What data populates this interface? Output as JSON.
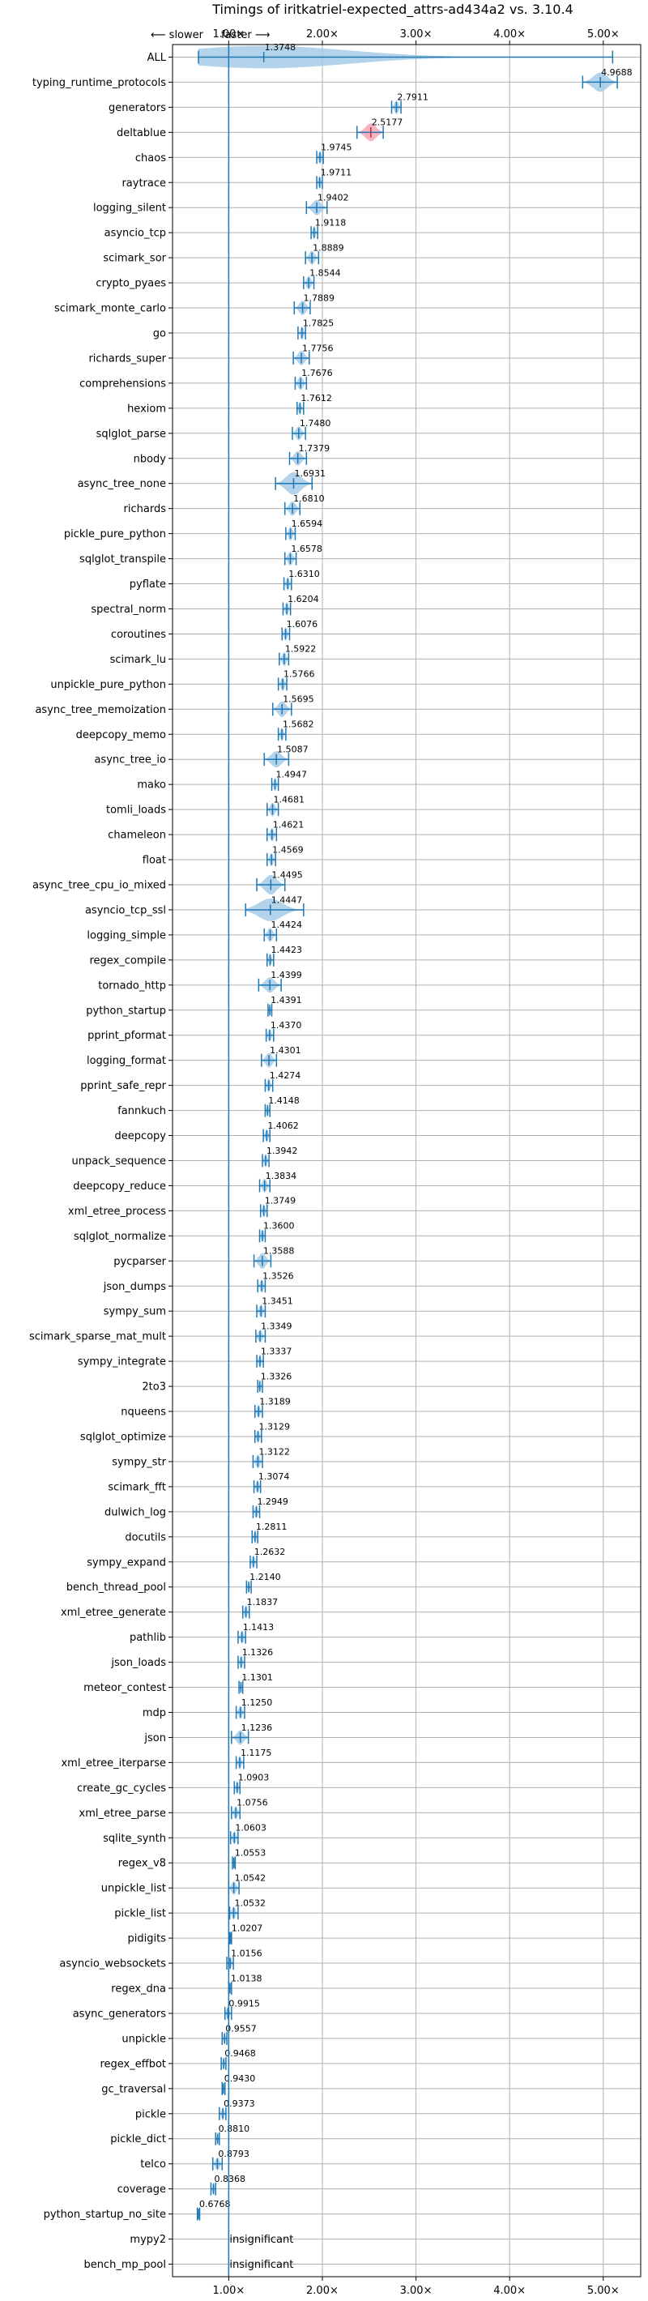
{
  "chart_data": {
    "type": "violin",
    "title": "Timings of iritkatriel-expected_attrs-ad434a2 vs. 3.10.4",
    "direction_labels": {
      "slower": "⟵ slower",
      "faster": "faster ⟶"
    },
    "xlim": [
      0.4,
      5.4
    ],
    "xticks": [
      1,
      2,
      3,
      4,
      5
    ],
    "xtick_labels": [
      "1.00×",
      "2.00×",
      "3.00×",
      "4.00×",
      "5.00×"
    ],
    "reference_line": 1.0,
    "grid": true,
    "colors": {
      "faster": "#1f77b4",
      "faster_fill": "#a6cbe8",
      "slower_fill": "#f4a7b9"
    },
    "insignificant_label": "insignificant",
    "benchmarks": [
      {
        "name": "ALL",
        "value": 1.3748,
        "label": "1.3748",
        "min": 0.6768,
        "max": 5.1,
        "spread": 0.25
      },
      {
        "name": "typing_runtime_protocols",
        "value": 4.9688,
        "label": "4.9688",
        "min": 4.78,
        "max": 5.15,
        "spread": 0.12
      },
      {
        "name": "generators",
        "value": 2.7911,
        "label": "2.7911",
        "min": 2.74,
        "max": 2.84,
        "spread": 0.04
      },
      {
        "name": "deltablue",
        "value": 2.5177,
        "label": "2.5177",
        "min": 2.37,
        "max": 2.65,
        "spread": 0.1,
        "slower": true
      },
      {
        "name": "chaos",
        "value": 1.9745,
        "label": "1.9745",
        "min": 1.94,
        "max": 2.01,
        "spread": 0.03
      },
      {
        "name": "raytrace",
        "value": 1.9711,
        "label": "1.9711",
        "min": 1.94,
        "max": 2.0,
        "spread": 0.03
      },
      {
        "name": "logging_silent",
        "value": 1.9402,
        "label": "1.9402",
        "min": 1.83,
        "max": 2.05,
        "spread": 0.06
      },
      {
        "name": "asyncio_tcp",
        "value": 1.9118,
        "label": "1.9118",
        "min": 1.88,
        "max": 1.95,
        "spread": 0.03
      },
      {
        "name": "scimark_sor",
        "value": 1.8889,
        "label": "1.8889",
        "min": 1.82,
        "max": 1.96,
        "spread": 0.04
      },
      {
        "name": "crypto_pyaes",
        "value": 1.8544,
        "label": "1.8544",
        "min": 1.8,
        "max": 1.91,
        "spread": 0.04
      },
      {
        "name": "scimark_monte_carlo",
        "value": 1.7889,
        "label": "1.7889",
        "min": 1.7,
        "max": 1.87,
        "spread": 0.05
      },
      {
        "name": "go",
        "value": 1.7825,
        "label": "1.7825",
        "min": 1.74,
        "max": 1.82,
        "spread": 0.03
      },
      {
        "name": "richards_super",
        "value": 1.7756,
        "label": "1.7756",
        "min": 1.69,
        "max": 1.86,
        "spread": 0.05
      },
      {
        "name": "comprehensions",
        "value": 1.7676,
        "label": "1.7676",
        "min": 1.71,
        "max": 1.83,
        "spread": 0.04
      },
      {
        "name": "hexiom",
        "value": 1.7612,
        "label": "1.7612",
        "min": 1.73,
        "max": 1.8,
        "spread": 0.03
      },
      {
        "name": "sqlglot_parse",
        "value": 1.748,
        "label": "1.7480",
        "min": 1.68,
        "max": 1.82,
        "spread": 0.04
      },
      {
        "name": "nbody",
        "value": 1.7379,
        "label": "1.7379",
        "min": 1.65,
        "max": 1.83,
        "spread": 0.05
      },
      {
        "name": "async_tree_none",
        "value": 1.6931,
        "label": "1.6931",
        "min": 1.5,
        "max": 1.89,
        "spread": 0.2
      },
      {
        "name": "richards",
        "value": 1.681,
        "label": "1.6810",
        "min": 1.6,
        "max": 1.76,
        "spread": 0.05
      },
      {
        "name": "pickle_pure_python",
        "value": 1.6594,
        "label": "1.6594",
        "min": 1.61,
        "max": 1.71,
        "spread": 0.04
      },
      {
        "name": "sqlglot_transpile",
        "value": 1.6578,
        "label": "1.6578",
        "min": 1.6,
        "max": 1.72,
        "spread": 0.04
      },
      {
        "name": "pyflate",
        "value": 1.631,
        "label": "1.6310",
        "min": 1.59,
        "max": 1.67,
        "spread": 0.03
      },
      {
        "name": "spectral_norm",
        "value": 1.6204,
        "label": "1.6204",
        "min": 1.58,
        "max": 1.66,
        "spread": 0.03
      },
      {
        "name": "coroutines",
        "value": 1.6076,
        "label": "1.6076",
        "min": 1.57,
        "max": 1.65,
        "spread": 0.03
      },
      {
        "name": "scimark_lu",
        "value": 1.5922,
        "label": "1.5922",
        "min": 1.54,
        "max": 1.64,
        "spread": 0.04
      },
      {
        "name": "unpickle_pure_python",
        "value": 1.5766,
        "label": "1.5766",
        "min": 1.53,
        "max": 1.62,
        "spread": 0.04
      },
      {
        "name": "async_tree_memoization",
        "value": 1.5695,
        "label": "1.5695",
        "min": 1.47,
        "max": 1.67,
        "spread": 0.07
      },
      {
        "name": "deepcopy_memo",
        "value": 1.5682,
        "label": "1.5682",
        "min": 1.53,
        "max": 1.61,
        "spread": 0.03
      },
      {
        "name": "async_tree_io",
        "value": 1.5087,
        "label": "1.5087",
        "min": 1.38,
        "max": 1.64,
        "spread": 0.08
      },
      {
        "name": "mako",
        "value": 1.4947,
        "label": "1.4947",
        "min": 1.46,
        "max": 1.53,
        "spread": 0.03
      },
      {
        "name": "tomli_loads",
        "value": 1.4681,
        "label": "1.4681",
        "min": 1.41,
        "max": 1.53,
        "spread": 0.04
      },
      {
        "name": "chameleon",
        "value": 1.4621,
        "label": "1.4621",
        "min": 1.41,
        "max": 1.51,
        "spread": 0.03
      },
      {
        "name": "float",
        "value": 1.4569,
        "label": "1.4569",
        "min": 1.41,
        "max": 1.5,
        "spread": 0.03
      },
      {
        "name": "async_tree_cpu_io_mixed",
        "value": 1.4495,
        "label": "1.4495",
        "min": 1.3,
        "max": 1.6,
        "spread": 0.13
      },
      {
        "name": "asyncio_tcp_ssl",
        "value": 1.4447,
        "label": "1.4447",
        "min": 1.18,
        "max": 1.8,
        "spread": 0.22
      },
      {
        "name": "logging_simple",
        "value": 1.4424,
        "label": "1.4424",
        "min": 1.38,
        "max": 1.51,
        "spread": 0.04
      },
      {
        "name": "regex_compile",
        "value": 1.4423,
        "label": "1.4423",
        "min": 1.41,
        "max": 1.48,
        "spread": 0.03
      },
      {
        "name": "tornado_http",
        "value": 1.4399,
        "label": "1.4399",
        "min": 1.32,
        "max": 1.56,
        "spread": 0.06
      },
      {
        "name": "python_startup",
        "value": 1.4391,
        "label": "1.4391",
        "min": 1.42,
        "max": 1.46,
        "spread": 0.015
      },
      {
        "name": "pprint_pformat",
        "value": 1.437,
        "label": "1.4370",
        "min": 1.4,
        "max": 1.48,
        "spread": 0.03
      },
      {
        "name": "logging_format",
        "value": 1.4301,
        "label": "1.4301",
        "min": 1.35,
        "max": 1.51,
        "spread": 0.05
      },
      {
        "name": "pprint_safe_repr",
        "value": 1.4274,
        "label": "1.4274",
        "min": 1.39,
        "max": 1.47,
        "spread": 0.03
      },
      {
        "name": "fannkuch",
        "value": 1.4148,
        "label": "1.4148",
        "min": 1.39,
        "max": 1.44,
        "spread": 0.02
      },
      {
        "name": "deepcopy",
        "value": 1.4062,
        "label": "1.4062",
        "min": 1.37,
        "max": 1.44,
        "spread": 0.03
      },
      {
        "name": "unpack_sequence",
        "value": 1.3942,
        "label": "1.3942",
        "min": 1.36,
        "max": 1.43,
        "spread": 0.03
      },
      {
        "name": "deepcopy_reduce",
        "value": 1.3834,
        "label": "1.3834",
        "min": 1.33,
        "max": 1.44,
        "spread": 0.04
      },
      {
        "name": "xml_etree_process",
        "value": 1.3749,
        "label": "1.3749",
        "min": 1.34,
        "max": 1.41,
        "spread": 0.03
      },
      {
        "name": "sqlglot_normalize",
        "value": 1.36,
        "label": "1.3600",
        "min": 1.33,
        "max": 1.39,
        "spread": 0.03
      },
      {
        "name": "pycparser",
        "value": 1.3588,
        "label": "1.3588",
        "min": 1.27,
        "max": 1.45,
        "spread": 0.07
      },
      {
        "name": "json_dumps",
        "value": 1.3526,
        "label": "1.3526",
        "min": 1.31,
        "max": 1.39,
        "spread": 0.03
      },
      {
        "name": "sympy_sum",
        "value": 1.3451,
        "label": "1.3451",
        "min": 1.3,
        "max": 1.39,
        "spread": 0.03
      },
      {
        "name": "scimark_sparse_mat_mult",
        "value": 1.3349,
        "label": "1.3349",
        "min": 1.29,
        "max": 1.39,
        "spread": 0.03
      },
      {
        "name": "sympy_integrate",
        "value": 1.3337,
        "label": "1.3337",
        "min": 1.3,
        "max": 1.37,
        "spread": 0.03
      },
      {
        "name": "2to3",
        "value": 1.3326,
        "label": "1.3326",
        "min": 1.31,
        "max": 1.36,
        "spread": 0.02
      },
      {
        "name": "nqueens",
        "value": 1.3189,
        "label": "1.3189",
        "min": 1.28,
        "max": 1.36,
        "spread": 0.03
      },
      {
        "name": "sqlglot_optimize",
        "value": 1.3129,
        "label": "1.3129",
        "min": 1.28,
        "max": 1.35,
        "spread": 0.03
      },
      {
        "name": "sympy_str",
        "value": 1.3122,
        "label": "1.3122",
        "min": 1.26,
        "max": 1.36,
        "spread": 0.04
      },
      {
        "name": "scimark_fft",
        "value": 1.3074,
        "label": "1.3074",
        "min": 1.27,
        "max": 1.34,
        "spread": 0.03
      },
      {
        "name": "dulwich_log",
        "value": 1.2949,
        "label": "1.2949",
        "min": 1.26,
        "max": 1.33,
        "spread": 0.03
      },
      {
        "name": "docutils",
        "value": 1.2811,
        "label": "1.2811",
        "min": 1.25,
        "max": 1.31,
        "spread": 0.03
      },
      {
        "name": "sympy_expand",
        "value": 1.2632,
        "label": "1.2632",
        "min": 1.23,
        "max": 1.3,
        "spread": 0.03
      },
      {
        "name": "bench_thread_pool",
        "value": 1.214,
        "label": "1.2140",
        "min": 1.19,
        "max": 1.24,
        "spread": 0.02
      },
      {
        "name": "xml_etree_generate",
        "value": 1.1837,
        "label": "1.1837",
        "min": 1.15,
        "max": 1.22,
        "spread": 0.03
      },
      {
        "name": "pathlib",
        "value": 1.1413,
        "label": "1.1413",
        "min": 1.1,
        "max": 1.18,
        "spread": 0.03
      },
      {
        "name": "json_loads",
        "value": 1.1326,
        "label": "1.1326",
        "min": 1.1,
        "max": 1.17,
        "spread": 0.03
      },
      {
        "name": "meteor_contest",
        "value": 1.1301,
        "label": "1.1301",
        "min": 1.11,
        "max": 1.15,
        "spread": 0.02
      },
      {
        "name": "mdp",
        "value": 1.125,
        "label": "1.1250",
        "min": 1.08,
        "max": 1.17,
        "spread": 0.03
      },
      {
        "name": "json",
        "value": 1.1236,
        "label": "1.1236",
        "min": 1.03,
        "max": 1.21,
        "spread": 0.05
      },
      {
        "name": "xml_etree_iterparse",
        "value": 1.1175,
        "label": "1.1175",
        "min": 1.08,
        "max": 1.16,
        "spread": 0.03
      },
      {
        "name": "create_gc_cycles",
        "value": 1.0903,
        "label": "1.0903",
        "min": 1.06,
        "max": 1.12,
        "spread": 0.03
      },
      {
        "name": "xml_etree_parse",
        "value": 1.0756,
        "label": "1.0756",
        "min": 1.03,
        "max": 1.12,
        "spread": 0.03
      },
      {
        "name": "sqlite_synth",
        "value": 1.0603,
        "label": "1.0603",
        "min": 1.02,
        "max": 1.1,
        "spread": 0.03
      },
      {
        "name": "regex_v8",
        "value": 1.0553,
        "label": "1.0553",
        "min": 1.04,
        "max": 1.07,
        "spread": 0.015
      },
      {
        "name": "unpickle_list",
        "value": 1.0542,
        "label": "1.0542",
        "min": 1.0,
        "max": 1.11,
        "spread": 0.04
      },
      {
        "name": "pickle_list",
        "value": 1.0532,
        "label": "1.0532",
        "min": 1.01,
        "max": 1.1,
        "spread": 0.03
      },
      {
        "name": "pidigits",
        "value": 1.0207,
        "label": "1.0207",
        "min": 1.01,
        "max": 1.03,
        "spread": 0.01
      },
      {
        "name": "asyncio_websockets",
        "value": 1.0156,
        "label": "1.0156",
        "min": 0.98,
        "max": 1.05,
        "spread": 0.03
      },
      {
        "name": "regex_dna",
        "value": 1.0138,
        "label": "1.0138",
        "min": 1.0,
        "max": 1.03,
        "spread": 0.01
      },
      {
        "name": "async_generators",
        "value": 0.9915,
        "label": "0.9915",
        "min": 0.96,
        "max": 1.03,
        "spread": 0.03
      },
      {
        "name": "unpickle",
        "value": 0.9557,
        "label": "0.9557",
        "min": 0.93,
        "max": 0.98,
        "spread": 0.02
      },
      {
        "name": "regex_effbot",
        "value": 0.9468,
        "label": "0.9468",
        "min": 0.92,
        "max": 0.97,
        "spread": 0.02
      },
      {
        "name": "gc_traversal",
        "value": 0.943,
        "label": "0.9430",
        "min": 0.93,
        "max": 0.96,
        "spread": 0.01
      },
      {
        "name": "pickle",
        "value": 0.9373,
        "label": "0.9373",
        "min": 0.9,
        "max": 0.97,
        "spread": 0.03
      },
      {
        "name": "pickle_dict",
        "value": 0.881,
        "label": "0.8810",
        "min": 0.86,
        "max": 0.9,
        "spread": 0.015
      },
      {
        "name": "telco",
        "value": 0.8793,
        "label": "0.8793",
        "min": 0.83,
        "max": 0.93,
        "spread": 0.03
      },
      {
        "name": "coverage",
        "value": 0.8368,
        "label": "0.8368",
        "min": 0.81,
        "max": 0.86,
        "spread": 0.02
      },
      {
        "name": "python_startup_no_site",
        "value": 0.6768,
        "label": "0.6768",
        "min": 0.665,
        "max": 0.69,
        "spread": 0.01
      },
      {
        "name": "mypy2",
        "value": null,
        "label": "",
        "insignificant": true
      },
      {
        "name": "bench_mp_pool",
        "value": null,
        "label": "",
        "insignificant": true
      }
    ]
  }
}
